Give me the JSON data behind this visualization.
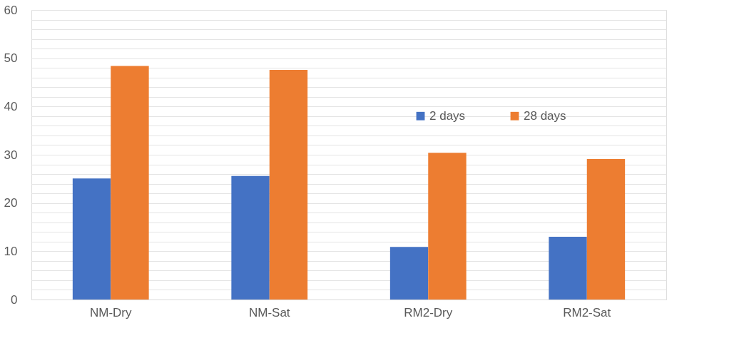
{
  "chart_data": {
    "type": "bar",
    "categories": [
      "NM-Dry",
      "NM-Sat",
      "RM2-Dry",
      "RM2-Sat"
    ],
    "series": [
      {
        "name": "2 days",
        "color": "#4472c4",
        "values": [
          25.1,
          25.6,
          10.9,
          13.0
        ]
      },
      {
        "name": "28 days",
        "color": "#ed7d31",
        "values": [
          48.4,
          47.6,
          30.4,
          29.1
        ]
      }
    ],
    "ylim": [
      0,
      60
    ],
    "yticks": [
      0,
      {
        "value": 2,
        "label": null
      },
      {
        "value": 4,
        "label": null
      },
      {
        "value": 6,
        "label": null
      },
      {
        "value": 8,
        "label": null
      },
      10,
      {
        "value": 12,
        "label": null
      },
      {
        "value": 14,
        "label": null
      },
      {
        "value": 16,
        "label": null
      },
      {
        "value": 18,
        "label": null
      },
      20,
      {
        "value": 22,
        "label": null
      },
      {
        "value": 24,
        "label": null
      },
      {
        "value": 26,
        "label": null
      },
      {
        "value": 28,
        "label": null
      },
      30,
      {
        "value": 32,
        "label": null
      },
      {
        "value": 34,
        "label": null
      },
      {
        "value": 36,
        "label": null
      },
      {
        "value": 38,
        "label": null
      },
      40,
      {
        "value": 42,
        "label": null
      },
      {
        "value": 44,
        "label": null
      },
      {
        "value": 46,
        "label": null
      },
      {
        "value": 48,
        "label": null
      },
      50,
      {
        "value": 52,
        "label": null
      },
      {
        "value": 54,
        "label": null
      },
      {
        "value": 56,
        "label": null
      },
      {
        "value": 58,
        "label": null
      },
      60
    ],
    "grid": "y",
    "legend": "top right"
  }
}
